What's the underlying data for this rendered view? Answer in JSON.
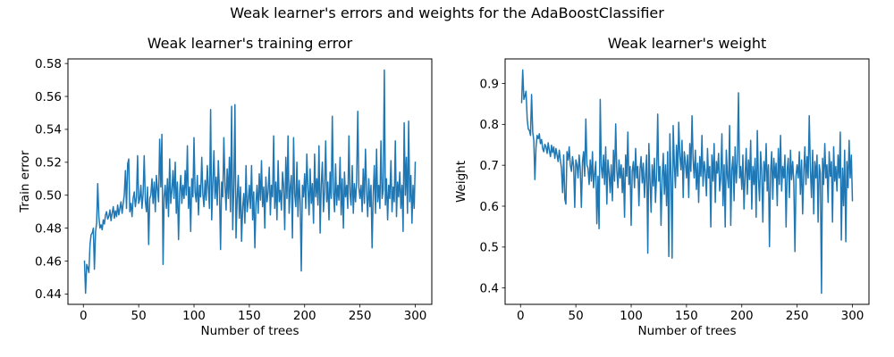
{
  "figure": {
    "suptitle": "Weak learner's errors and weights for the AdaBoostClassifier"
  },
  "chart_data": [
    {
      "type": "line",
      "title": "Weak learner's training error",
      "xlabel": "Number of trees",
      "ylabel": "Train error",
      "line_color": "#1f77b4",
      "grid": false,
      "legend": null,
      "x_start": 1,
      "xlim": [
        -13.95,
        314.95
      ],
      "ylim": [
        0.4337,
        0.5828
      ],
      "xticks": [
        0,
        50,
        100,
        150,
        200,
        250,
        300
      ],
      "xtick_labels": [
        "0",
        "50",
        "100",
        "150",
        "200",
        "250",
        "300"
      ],
      "yticks": [
        0.44,
        0.46,
        0.48,
        0.5,
        0.52,
        0.54,
        0.56,
        0.58
      ],
      "ytick_labels": [
        "0.44",
        "0.46",
        "0.48",
        "0.50",
        "0.52",
        "0.54",
        "0.56",
        "0.58"
      ],
      "values": [
        0.46,
        0.4405,
        0.458,
        0.456,
        0.453,
        0.47,
        0.476,
        0.477,
        0.48,
        0.455,
        0.478,
        0.483,
        0.507,
        0.487,
        0.48,
        0.482,
        0.479,
        0.485,
        0.4825,
        0.488,
        0.49,
        0.4855,
        0.487,
        0.491,
        0.4845,
        0.489,
        0.493,
        0.486,
        0.4905,
        0.487,
        0.494,
        0.488,
        0.492,
        0.496,
        0.489,
        0.495,
        0.5,
        0.515,
        0.492,
        0.519,
        0.522,
        0.49,
        0.495,
        0.487,
        0.498,
        0.502,
        0.493,
        0.499,
        0.524,
        0.495,
        0.498,
        0.506,
        0.492,
        0.501,
        0.524,
        0.496,
        0.49,
        0.505,
        0.47,
        0.498,
        0.5,
        0.51,
        0.495,
        0.508,
        0.49,
        0.512,
        0.503,
        0.496,
        0.534,
        0.505,
        0.537,
        0.458,
        0.499,
        0.506,
        0.492,
        0.51,
        0.487,
        0.522,
        0.495,
        0.503,
        0.515,
        0.498,
        0.52,
        0.489,
        0.508,
        0.473,
        0.501,
        0.512,
        0.495,
        0.506,
        0.498,
        0.515,
        0.5,
        0.53,
        0.492,
        0.505,
        0.478,
        0.51,
        0.499,
        0.535,
        0.502,
        0.496,
        0.512,
        0.488,
        0.506,
        0.499,
        0.523,
        0.501,
        0.493,
        0.509,
        0.497,
        0.518,
        0.504,
        0.492,
        0.552,
        0.485,
        0.506,
        0.527,
        0.498,
        0.511,
        0.494,
        0.521,
        0.503,
        0.467,
        0.508,
        0.499,
        0.535,
        0.506,
        0.491,
        0.516,
        0.498,
        0.523,
        0.49,
        0.554,
        0.479,
        0.506,
        0.555,
        0.474,
        0.498,
        0.512,
        0.486,
        0.505,
        0.472,
        0.493,
        0.501,
        0.483,
        0.518,
        0.49,
        0.496,
        0.506,
        0.492,
        0.518,
        0.485,
        0.502,
        0.468,
        0.495,
        0.506,
        0.489,
        0.513,
        0.497,
        0.521,
        0.493,
        0.505,
        0.48,
        0.511,
        0.496,
        0.502,
        0.517,
        0.488,
        0.506,
        0.499,
        0.536,
        0.492,
        0.508,
        0.485,
        0.521,
        0.496,
        0.503,
        0.491,
        0.514,
        0.506,
        0.479,
        0.523,
        0.498,
        0.536,
        0.489,
        0.505,
        0.512,
        0.474,
        0.535,
        0.501,
        0.493,
        0.52,
        0.487,
        0.509,
        0.496,
        0.454,
        0.506,
        0.499,
        0.513,
        0.492,
        0.525,
        0.504,
        0.488,
        0.516,
        0.495,
        0.507,
        0.483,
        0.525,
        0.499,
        0.51,
        0.494,
        0.53,
        0.477,
        0.506,
        0.52,
        0.49,
        0.502,
        0.533,
        0.496,
        0.508,
        0.485,
        0.514,
        0.498,
        0.548,
        0.503,
        0.49,
        0.519,
        0.494,
        0.506,
        0.497,
        0.523,
        0.488,
        0.51,
        0.48,
        0.514,
        0.499,
        0.506,
        0.492,
        0.536,
        0.501,
        0.494,
        0.518,
        0.489,
        0.507,
        0.496,
        0.508,
        0.551,
        0.505,
        0.498,
        0.506,
        0.49,
        0.516,
        0.495,
        0.528,
        0.502,
        0.487,
        0.51,
        0.493,
        0.506,
        0.468,
        0.501,
        0.518,
        0.489,
        0.528,
        0.496,
        0.506,
        0.492,
        0.533,
        0.498,
        0.503,
        0.576,
        0.494,
        0.51,
        0.485,
        0.506,
        0.498,
        0.521,
        0.49,
        0.505,
        0.496,
        0.533,
        0.487,
        0.508,
        0.499,
        0.514,
        0.492,
        0.506,
        0.478,
        0.544,
        0.5,
        0.523,
        0.489,
        0.545,
        0.496,
        0.512,
        0.483,
        0.506,
        0.492,
        0.52
      ]
    },
    {
      "type": "line",
      "title": "Weak learner's weight",
      "xlabel": "Number of trees",
      "ylabel": "Weight",
      "line_color": "#1f77b4",
      "grid": false,
      "legend": null,
      "x_start": 1,
      "xlim": [
        -13.95,
        314.95
      ],
      "ylim": [
        0.36,
        0.96
      ],
      "xticks": [
        0,
        50,
        100,
        150,
        200,
        250,
        300
      ],
      "xtick_labels": [
        "0",
        "50",
        "100",
        "150",
        "200",
        "250",
        "300"
      ],
      "yticks": [
        0.4,
        0.5,
        0.6,
        0.7,
        0.8,
        0.9
      ],
      "ytick_labels": [
        "0.4",
        "0.5",
        "0.6",
        "0.7",
        "0.8",
        "0.9"
      ],
      "values": [
        0.853,
        0.933,
        0.861,
        0.869,
        0.881,
        0.813,
        0.789,
        0.785,
        0.773,
        0.873,
        0.781,
        0.761,
        0.665,
        0.745,
        0.773,
        0.765,
        0.777,
        0.753,
        0.763,
        0.741,
        0.733,
        0.751,
        0.745,
        0.729,
        0.755,
        0.737,
        0.721,
        0.749,
        0.731,
        0.745,
        0.717,
        0.741,
        0.725,
        0.709,
        0.737,
        0.713,
        0.693,
        0.633,
        0.725,
        0.617,
        0.605,
        0.733,
        0.713,
        0.745,
        0.701,
        0.685,
        0.721,
        0.697,
        0.597,
        0.713,
        0.701,
        0.669,
        0.725,
        0.689,
        0.597,
        0.709,
        0.733,
        0.673,
        0.813,
        0.701,
        0.693,
        0.653,
        0.713,
        0.661,
        0.733,
        0.645,
        0.681,
        0.709,
        0.557,
        0.673,
        0.545,
        0.861,
        0.697,
        0.669,
        0.725,
        0.653,
        0.745,
        0.605,
        0.713,
        0.681,
        0.633,
        0.701,
        0.613,
        0.737,
        0.661,
        0.801,
        0.689,
        0.645,
        0.713,
        0.669,
        0.701,
        0.633,
        0.693,
        0.573,
        0.725,
        0.673,
        0.781,
        0.653,
        0.697,
        0.553,
        0.685,
        0.709,
        0.645,
        0.741,
        0.669,
        0.697,
        0.601,
        0.689,
        0.721,
        0.657,
        0.705,
        0.621,
        0.677,
        0.725,
        0.485,
        0.753,
        0.669,
        0.585,
        0.701,
        0.649,
        0.717,
        0.609,
        0.681,
        0.825,
        0.661,
        0.697,
        0.553,
        0.669,
        0.729,
        0.629,
        0.701,
        0.601,
        0.733,
        0.477,
        0.777,
        0.669,
        0.473,
        0.797,
        0.701,
        0.645,
        0.749,
        0.673,
        0.805,
        0.721,
        0.689,
        0.761,
        0.621,
        0.733,
        0.709,
        0.669,
        0.725,
        0.621,
        0.753,
        0.685,
        0.821,
        0.713,
        0.669,
        0.737,
        0.641,
        0.705,
        0.609,
        0.721,
        0.673,
        0.773,
        0.649,
        0.709,
        0.685,
        0.625,
        0.741,
        0.669,
        0.697,
        0.549,
        0.725,
        0.661,
        0.753,
        0.609,
        0.709,
        0.681,
        0.729,
        0.637,
        0.669,
        0.777,
        0.601,
        0.701,
        0.549,
        0.737,
        0.673,
        0.645,
        0.797,
        0.553,
        0.689,
        0.721,
        0.613,
        0.745,
        0.657,
        0.709,
        0.877,
        0.669,
        0.697,
        0.641,
        0.725,
        0.593,
        0.677,
        0.741,
        0.629,
        0.713,
        0.665,
        0.761,
        0.593,
        0.697,
        0.653,
        0.717,
        0.573,
        0.785,
        0.669,
        0.613,
        0.733,
        0.685,
        0.561,
        0.709,
        0.661,
        0.753,
        0.637,
        0.701,
        0.501,
        0.681,
        0.733,
        0.617,
        0.717,
        0.669,
        0.705,
        0.601,
        0.741,
        0.653,
        0.773,
        0.637,
        0.697,
        0.669,
        0.725,
        0.549,
        0.689,
        0.717,
        0.621,
        0.737,
        0.665,
        0.709,
        0.661,
        0.489,
        0.673,
        0.701,
        0.669,
        0.733,
        0.629,
        0.713,
        0.581,
        0.685,
        0.745,
        0.653,
        0.721,
        0.669,
        0.821,
        0.689,
        0.621,
        0.737,
        0.581,
        0.709,
        0.669,
        0.725,
        0.561,
        0.701,
        0.681,
        0.387,
        0.717,
        0.653,
        0.753,
        0.669,
        0.701,
        0.609,
        0.733,
        0.673,
        0.709,
        0.561,
        0.745,
        0.661,
        0.697,
        0.637,
        0.725,
        0.669,
        0.781,
        0.517,
        0.693,
        0.601,
        0.737,
        0.513,
        0.709,
        0.645,
        0.761,
        0.669,
        0.725,
        0.613
      ]
    }
  ]
}
